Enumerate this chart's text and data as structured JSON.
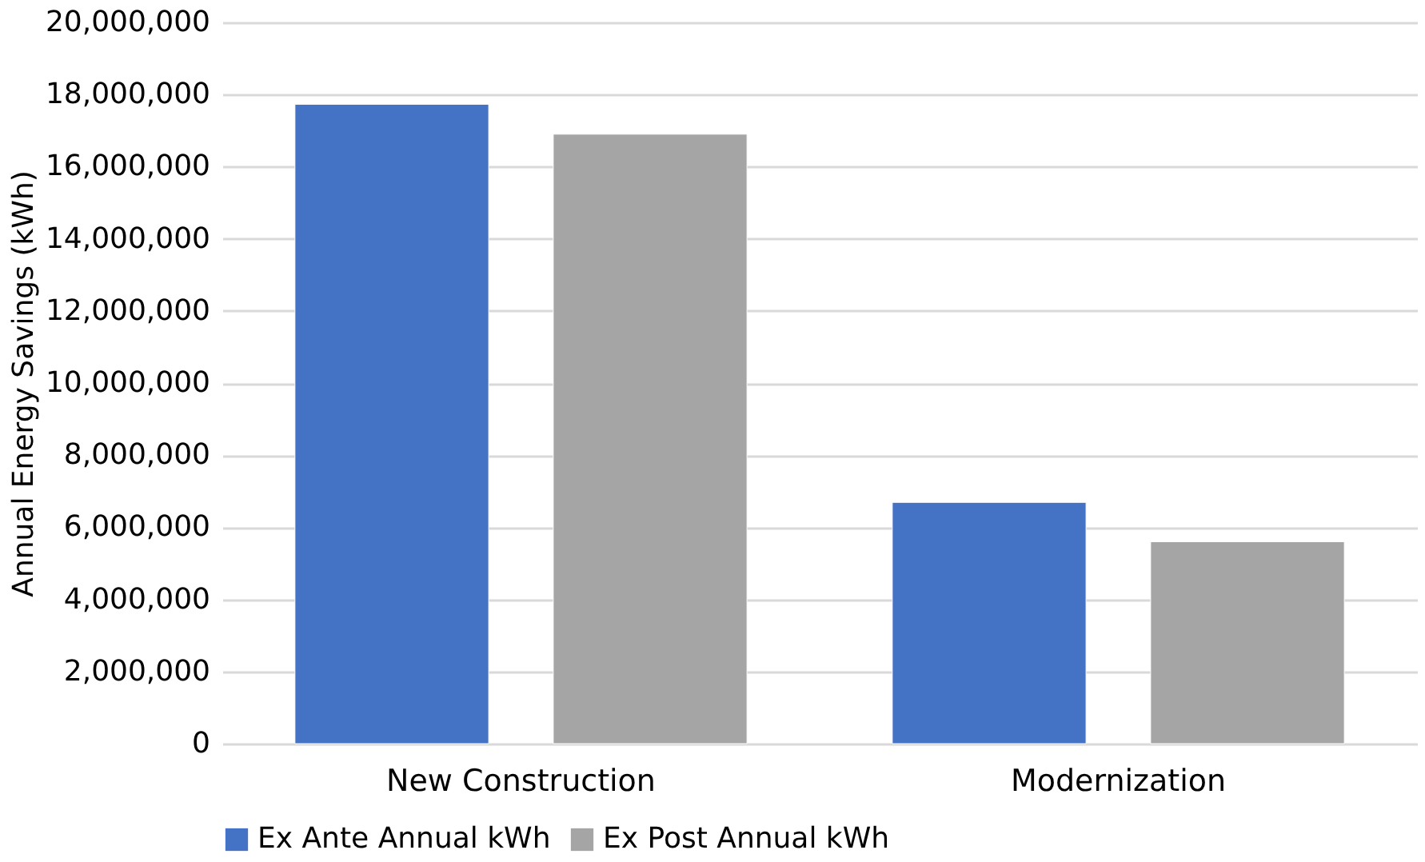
{
  "chart_data": {
    "type": "bar",
    "ylabel": "Annual Energy Savings (kWh)",
    "categories": [
      "New Construction",
      "Modernization"
    ],
    "series": [
      {
        "name": "Ex Ante Annual kWh",
        "color": "#4472c4",
        "values": [
          17730000,
          6690000
        ]
      },
      {
        "name": "Ex Post Annual kWh",
        "color": "#a5a5a5",
        "values": [
          16900000,
          5600000
        ]
      }
    ],
    "ylim": [
      0,
      20000000
    ],
    "yticks": [
      0,
      {
        "value": 2000000,
        "label": "2,000,000"
      },
      {
        "value": 4000000,
        "label": "4,000,000"
      },
      {
        "value": 6000000,
        "label": "6,000,000"
      },
      {
        "value": 8000000,
        "label": "8,000,000"
      },
      {
        "value": 10000000,
        "label": "10,000,000"
      },
      {
        "value": 12000000,
        "label": "12,000,000"
      },
      {
        "value": 14000000,
        "label": "14,000,000"
      },
      {
        "value": 16000000,
        "label": "16,000,000"
      },
      {
        "value": 18000000,
        "label": "18,000,000"
      },
      {
        "value": 20000000,
        "label": "20,000,000"
      }
    ],
    "grid": "y",
    "legend": "bottom"
  }
}
